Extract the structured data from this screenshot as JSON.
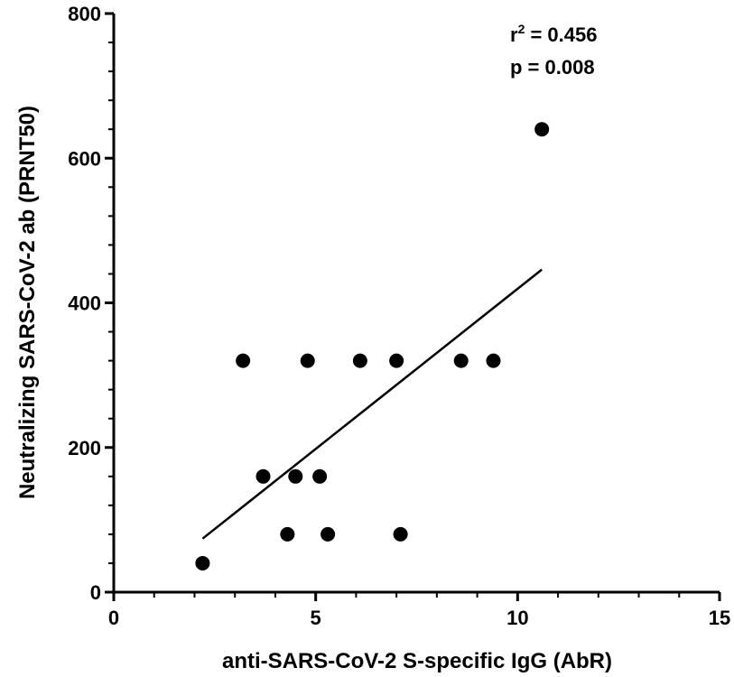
{
  "chart_data": {
    "type": "scatter",
    "title": "",
    "xlabel": "anti-SARS-CoV-2 S-specific IgG (AbR)",
    "ylabel": "Neutralizing SARS-CoV-2 ab (PRNT50)",
    "xlim": [
      0,
      15
    ],
    "ylim": [
      0,
      800
    ],
    "x_ticks": [
      0,
      5,
      10,
      15
    ],
    "y_ticks": [
      0,
      200,
      400,
      600,
      800
    ],
    "x_minor_step": 1,
    "y_minor_step": 40,
    "grid": false,
    "points": [
      {
        "x": 2.2,
        "y": 40
      },
      {
        "x": 3.2,
        "y": 320
      },
      {
        "x": 3.7,
        "y": 160
      },
      {
        "x": 4.3,
        "y": 80
      },
      {
        "x": 4.5,
        "y": 160
      },
      {
        "x": 4.8,
        "y": 320
      },
      {
        "x": 5.1,
        "y": 160
      },
      {
        "x": 5.3,
        "y": 80
      },
      {
        "x": 6.1,
        "y": 320
      },
      {
        "x": 7.0,
        "y": 320
      },
      {
        "x": 7.1,
        "y": 80
      },
      {
        "x": 8.6,
        "y": 320
      },
      {
        "x": 9.4,
        "y": 320
      },
      {
        "x": 10.6,
        "y": 640
      }
    ],
    "regression_line": {
      "x": [
        2.2,
        10.6
      ],
      "y": [
        74,
        446
      ]
    },
    "annotations": {
      "r2_label": "r",
      "r2_sup": "2",
      "r2_value": " = 0.456",
      "p_text": "p = 0.008"
    },
    "colors": {
      "marker": "#000000",
      "line": "#000000",
      "axis": "#000000"
    }
  }
}
